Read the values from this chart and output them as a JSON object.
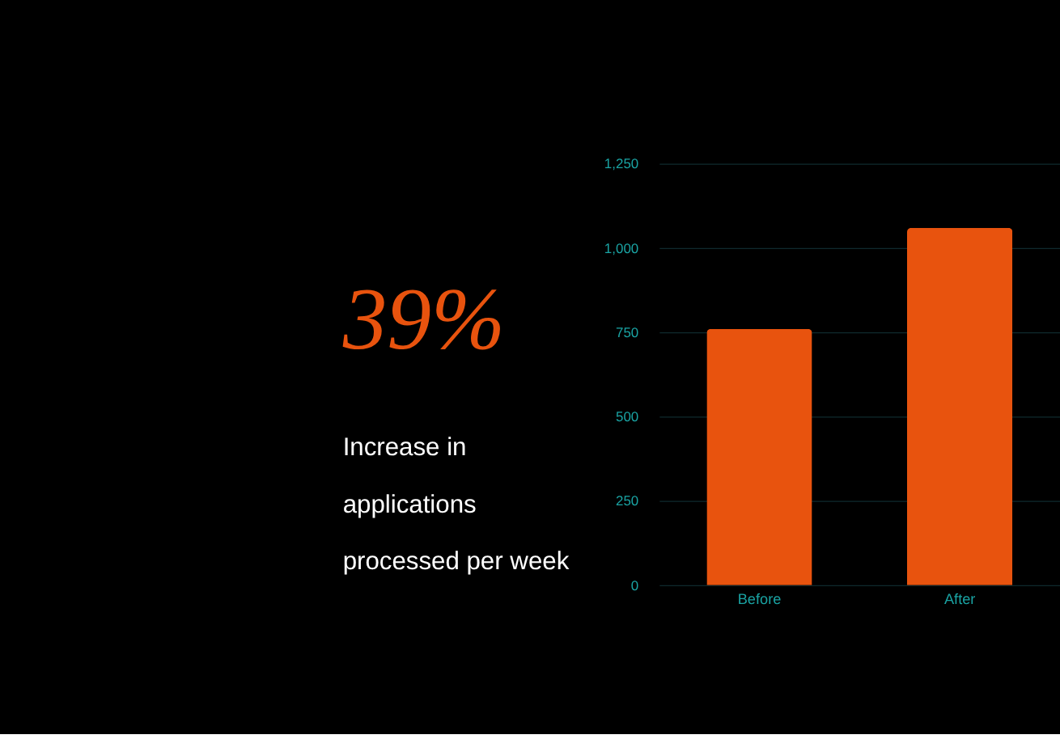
{
  "chart_data": {
    "type": "bar",
    "categories": [
      "Before",
      "After"
    ],
    "values": [
      760,
      1060
    ],
    "color": "#e8530e",
    "ylim": [
      0,
      1250
    ],
    "yticks": [
      {
        "value": 0,
        "label": "0"
      },
      {
        "value": 250,
        "label": "250"
      },
      {
        "value": 500,
        "label": "500"
      },
      {
        "value": 750,
        "label": "750"
      },
      {
        "value": 1000,
        "label": "1,000"
      },
      {
        "value": 1250,
        "label": "1,250"
      }
    ],
    "grid": "y",
    "annotations": [
      "39%",
      "Increase in",
      "applications",
      "processed per week"
    ]
  }
}
